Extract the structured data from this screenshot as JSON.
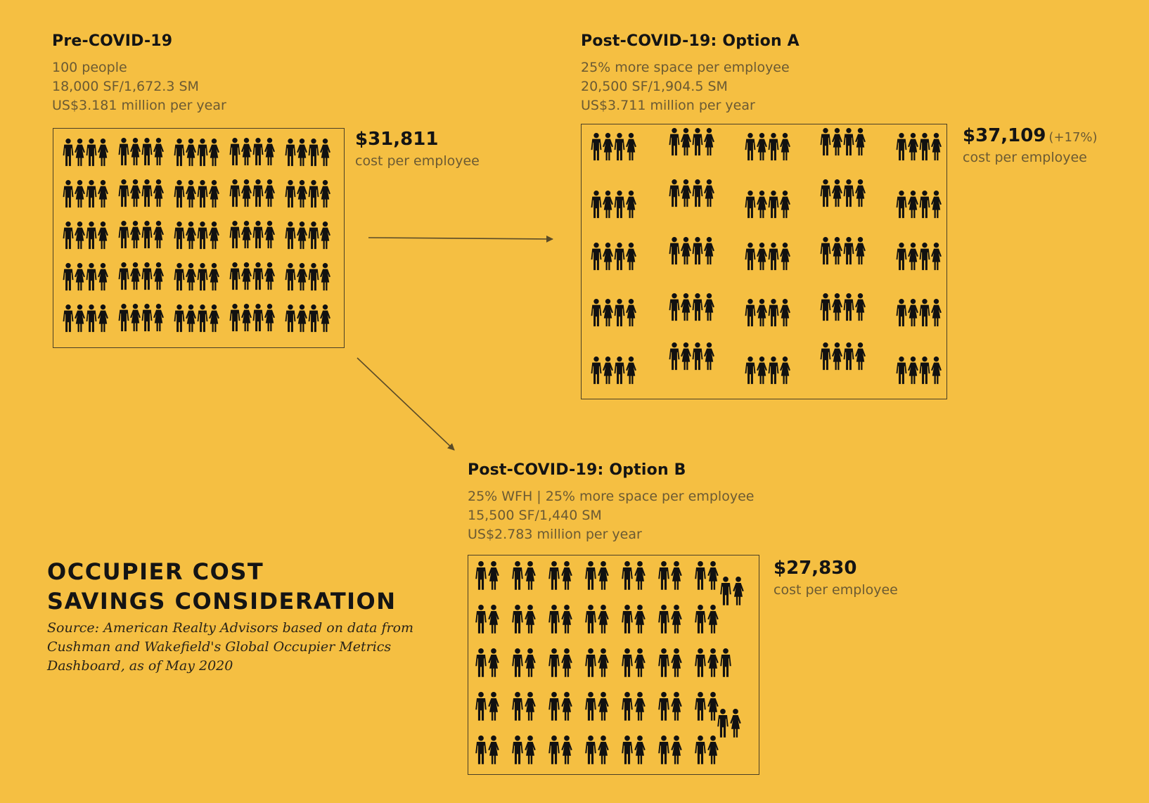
{
  "pre": {
    "title": "Pre-COVID-19",
    "lines": [
      "100 people",
      "18,000 SF/1,672.3 SM",
      "US$3.181 million per year"
    ],
    "cost_value": "$31,811",
    "cost_label": "cost per employee"
  },
  "option_a": {
    "title": "Post-COVID-19: Option A",
    "lines": [
      "25% more space per employee",
      "20,500 SF/1,904.5 SM",
      "US$3.711 million per year"
    ],
    "cost_value": "$37,109",
    "cost_change": "(+17%)",
    "cost_label": "cost per employee"
  },
  "option_b": {
    "title": "Post-COVID-19: Option B",
    "lines": [
      "25% WFH | 25% more space per employee",
      "15,500 SF/1,440 SM",
      "US$2.783 million per year"
    ],
    "cost_value": "$27,830",
    "cost_label": "cost per employee"
  },
  "headline": [
    "OCCUPIER COST",
    "SAVINGS CONSIDERATION"
  ],
  "source": "Source: American Realty Advisors based on data from Cushman and Wakefield's Global Occupier Metrics Dashboard, as of May 2020",
  "colors": {
    "background": "#f5bf42",
    "figure": "#111111",
    "muted_text": "#6b5a33",
    "border": "#4a3f25"
  },
  "icons": {
    "person": "person-icon",
    "arrow": "arrow-icon"
  }
}
